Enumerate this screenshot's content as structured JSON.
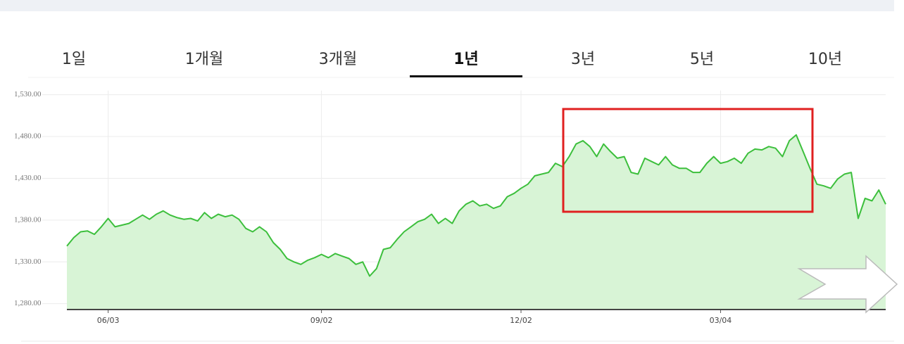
{
  "tabs": {
    "items": [
      "1일",
      "1개월",
      "3개월",
      "1년",
      "3년",
      "5년",
      "10년"
    ],
    "active": 3
  },
  "chart_data": {
    "type": "line",
    "categories": [
      null,
      null,
      null,
      null,
      null,
      null,
      "06/03",
      null,
      null,
      null,
      null,
      null,
      null,
      null,
      null,
      null,
      null,
      null,
      null,
      null,
      null,
      null,
      null,
      null,
      null,
      null,
      null,
      null,
      null,
      null,
      null,
      null,
      null,
      null,
      null,
      null,
      null,
      "09/02",
      null,
      null,
      null,
      null,
      null,
      null,
      null,
      null,
      null,
      null,
      null,
      null,
      null,
      null,
      null,
      null,
      null,
      null,
      null,
      null,
      null,
      null,
      null,
      null,
      null,
      null,
      null,
      null,
      "12/02",
      null,
      null,
      null,
      null,
      null,
      null,
      null,
      null,
      null,
      null,
      null,
      null,
      null,
      null,
      null,
      null,
      null,
      null,
      null,
      null,
      null,
      null,
      null,
      null,
      null,
      null,
      null,
      null,
      "03/04",
      null,
      null,
      null,
      null,
      null,
      null,
      null,
      null,
      null,
      null,
      null,
      null,
      null,
      null,
      null,
      null,
      null,
      null,
      null,
      null,
      null,
      null,
      null,
      null
    ],
    "series": [
      {
        "color": "#3cbf3c",
        "fill": "#d8f4d6",
        "values": [
          1349,
          1359,
          1366,
          1367,
          1363,
          1372,
          1382,
          1372,
          1374,
          1376,
          1381,
          1386,
          1381,
          1387,
          1391,
          1386,
          1383,
          1381,
          1382,
          1379,
          1389,
          1382,
          1387,
          1384,
          1386,
          1381,
          1370,
          1366,
          1372,
          1366,
          1353,
          1345,
          1334,
          1330,
          1327,
          1332,
          1335,
          1339,
          1335,
          1340,
          1337,
          1334,
          1327,
          1330,
          1313,
          1322,
          1345,
          1347,
          1357,
          1366,
          1372,
          1378,
          1381,
          1387,
          1376,
          1382,
          1376,
          1391,
          1399,
          1403,
          1397,
          1399,
          1394,
          1397,
          1408,
          1412,
          1418,
          1423,
          1433,
          1435,
          1437,
          1448,
          1444,
          1456,
          1471,
          1475,
          1468,
          1456,
          1471,
          1462,
          1454,
          1456,
          1437,
          1435,
          1454,
          1450,
          1446,
          1456,
          1446,
          1442,
          1442,
          1437,
          1437,
          1448,
          1456,
          1448,
          1450,
          1454,
          1448,
          1460,
          1465,
          1464,
          1468,
          1466,
          1456,
          1475,
          1482,
          1462,
          1442,
          1423,
          1421,
          1418,
          1429,
          1435,
          1437,
          1382,
          1406,
          1403,
          1416,
          1399
        ]
      }
    ],
    "ylim": [
      1273,
      1535
    ],
    "yticks": [
      {
        "value": 1280,
        "label": "1,280.00"
      },
      {
        "value": 1330,
        "label": "1,330.00"
      },
      {
        "value": 1380,
        "label": "1,380.00"
      },
      {
        "value": 1430,
        "label": "1,430.00"
      },
      {
        "value": 1480,
        "label": "1,480.00"
      },
      {
        "value": 1530,
        "label": "1,530.00"
      }
    ],
    "grid": true
  }
}
